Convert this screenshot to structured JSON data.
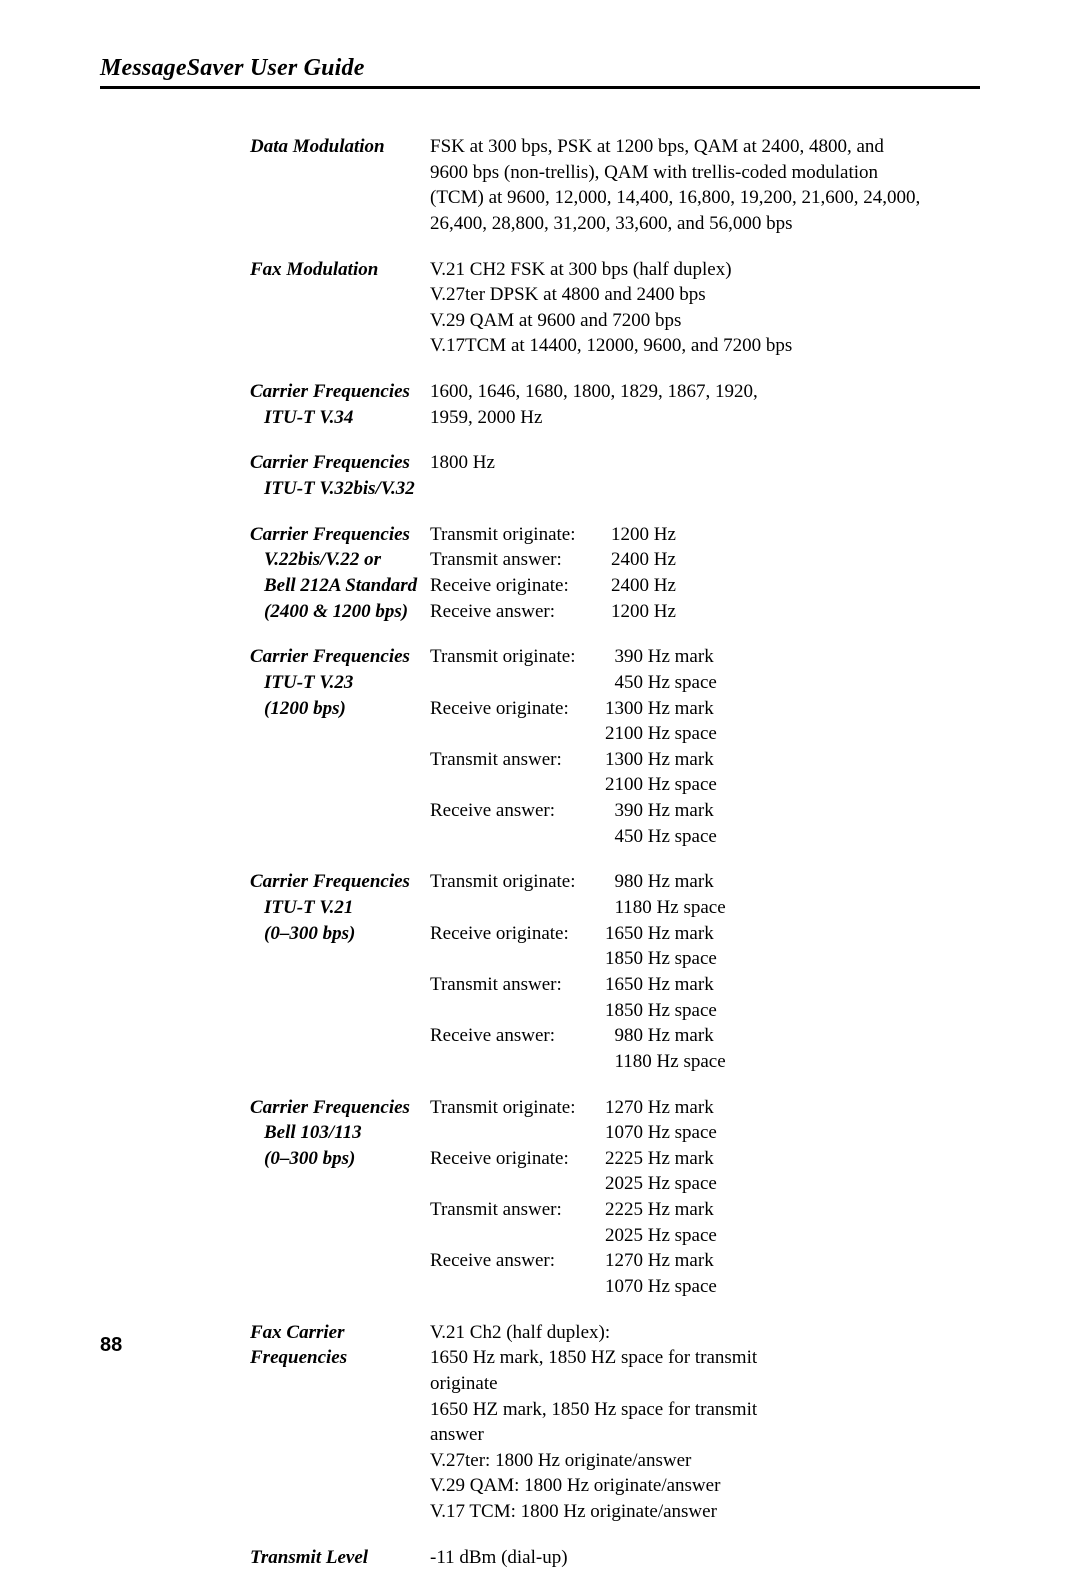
{
  "header": {
    "title": "MessageSaver User Guide"
  },
  "page_number": "88",
  "entries": [
    {
      "label_lines": [
        "Data Modulation"
      ],
      "value_lines": [
        "FSK at 300 bps, PSK at 1200 bps, QAM at 2400, 4800, and",
        "9600 bps (non-trellis), QAM with trellis-coded modulation",
        "(TCM) at 9600, 12,000, 14,400, 16,800, 19,200, 21,600, 24,000,",
        "26,400, 28,800, 31,200, 33,600, and 56,000 bps"
      ]
    },
    {
      "label_lines": [
        "Fax Modulation"
      ],
      "value_lines": [
        "V.21 CH2 FSK at 300 bps (half duplex)",
        "V.27ter DPSK at 4800 and 2400 bps",
        "V.29 QAM at 9600 and 7200 bps",
        "V.17TCM at 14400, 12000, 9600, and 7200 bps"
      ]
    },
    {
      "label_lines": [
        "Carrier Frequencies",
        "ITU-T V.34"
      ],
      "label_indent": [
        false,
        true
      ],
      "value_lines": [
        "1600, 1646, 1680, 1800, 1829, 1867, 1920,",
        "1959, 2000 Hz"
      ]
    },
    {
      "label_lines": [
        "Carrier Frequencies",
        "ITU-T V.32bis/V.32"
      ],
      "label_indent": [
        false,
        true
      ],
      "value_lines": [
        "1800 Hz"
      ]
    },
    {
      "label_lines": [
        "Carrier Frequencies",
        "V.22bis/V.22 or",
        "Bell 212A Standard",
        "(2400 & 1200 bps)"
      ],
      "label_indent": [
        false,
        true,
        true,
        true
      ],
      "freq_table": [
        {
          "k": "Transmit originate:",
          "v": "1200 Hz"
        },
        {
          "k": "Transmit answer:",
          "v": "2400 Hz"
        },
        {
          "k": "Receive originate:",
          "v": "2400 Hz"
        },
        {
          "k": "Receive answer:",
          "v": "1200 Hz"
        }
      ]
    },
    {
      "label_lines": [
        "Carrier Frequencies",
        "ITU-T V.23",
        "(1200 bps)"
      ],
      "label_indent": [
        false,
        true,
        true
      ],
      "freq_mark_space": [
        {
          "k": "Transmit originate:",
          "mark": "390 Hz mark",
          "space": "450 Hz space",
          "pad": true
        },
        {
          "k": "Receive originate:",
          "mark": "1300 Hz mark",
          "space": "2100 Hz space"
        },
        {
          "k": "Transmit answer:",
          "mark": "1300 Hz mark",
          "space": "2100 Hz space"
        },
        {
          "k": "Receive answer:",
          "mark": "390 Hz mark",
          "space": "450 Hz space",
          "pad": true
        }
      ]
    },
    {
      "label_lines": [
        "Carrier Frequencies",
        "ITU-T V.21",
        "(0–300 bps)"
      ],
      "label_indent": [
        false,
        true,
        true
      ],
      "freq_mark_space": [
        {
          "k": "Transmit originate:",
          "mark": "980 Hz mark",
          "space": "1180 Hz space",
          "pad": true
        },
        {
          "k": "Receive originate:",
          "mark": "1650 Hz mark",
          "space": "1850 Hz space"
        },
        {
          "k": "Transmit answer:",
          "mark": "1650 Hz mark",
          "space": "1850 Hz space"
        },
        {
          "k": "Receive answer:",
          "mark": "980 Hz mark",
          "space": "1180 Hz space",
          "pad": true
        }
      ]
    },
    {
      "label_lines": [
        "Carrier Frequencies",
        "Bell 103/113",
        "(0–300 bps)"
      ],
      "label_indent": [
        false,
        true,
        true
      ],
      "freq_mark_space": [
        {
          "k": "Transmit originate:",
          "mark": "1270 Hz mark",
          "space": "1070 Hz space"
        },
        {
          "k": "Receive originate:",
          "mark": "2225 Hz mark",
          "space": "2025 Hz space"
        },
        {
          "k": "Transmit answer:",
          "mark": "2225 Hz mark",
          "space": "2025 Hz space"
        },
        {
          "k": "Receive answer:",
          "mark": "1270 Hz mark",
          "space": "1070 Hz space"
        }
      ]
    },
    {
      "label_lines": [
        "Fax Carrier",
        "Frequencies"
      ],
      "value_lines": [
        "V.21 Ch2 (half duplex):",
        "1650 Hz mark, 1850 HZ space for transmit",
        "originate",
        "1650 HZ mark, 1850 Hz space for transmit",
        "answer",
        "V.27ter: 1800 Hz originate/answer",
        "V.29 QAM: 1800 Hz originate/answer",
        "V.17 TCM: 1800 Hz originate/answer"
      ]
    },
    {
      "label_lines": [
        "Transmit Level"
      ],
      "value_lines": [
        "-11 dBm (dial-up)"
      ]
    }
  ]
}
